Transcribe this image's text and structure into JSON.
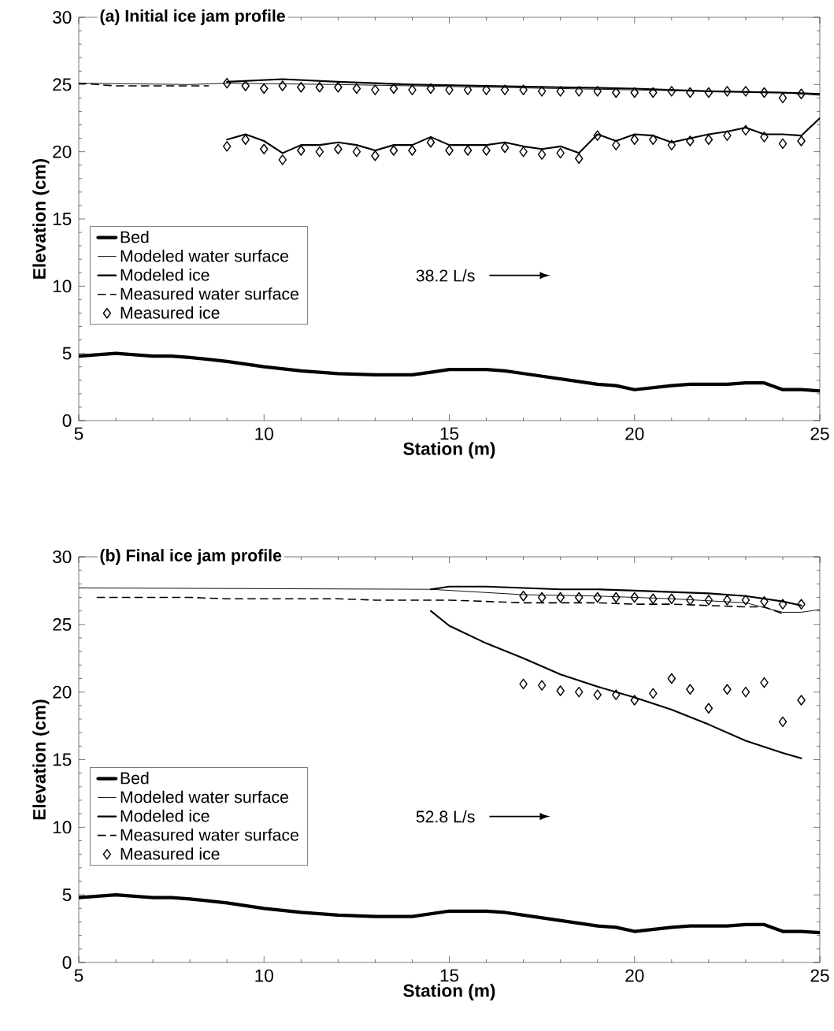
{
  "chart_data": [
    {
      "type": "line",
      "title": "(a) Initial ice jam profile",
      "xlabel": "Station (m)",
      "ylabel": "Elevation (cm)",
      "annotations": [
        "38.2 L/s"
      ],
      "legend": "left",
      "xlim": [
        5,
        25
      ],
      "ylim": [
        0,
        30
      ],
      "xticks": [
        5,
        10,
        15,
        20,
        25
      ],
      "yticks": [
        0,
        5,
        10,
        15,
        20,
        25,
        30
      ],
      "series": [
        {
          "name": "Bed",
          "color": "#000000",
          "x": [
            5,
            6,
            7,
            7.5,
            8,
            9,
            10,
            11,
            12,
            13,
            14,
            14.5,
            15,
            16,
            16.5,
            17,
            18,
            19,
            19.5,
            20,
            21,
            21.5,
            22,
            22.5,
            23,
            23.5,
            24,
            24.5,
            25
          ],
          "values": [
            4.8,
            5.0,
            4.8,
            4.8,
            4.7,
            4.4,
            4.0,
            3.7,
            3.5,
            3.4,
            3.4,
            3.6,
            3.8,
            3.8,
            3.7,
            3.5,
            3.1,
            2.7,
            2.6,
            2.3,
            2.6,
            2.7,
            2.7,
            2.7,
            2.8,
            2.8,
            2.3,
            2.3,
            2.2
          ]
        },
        {
          "name": "Modeled water surface",
          "color": "#000000",
          "x": [
            5,
            8,
            9,
            12,
            16,
            20,
            24,
            25
          ],
          "values": [
            25.1,
            25.0,
            25.1,
            25.0,
            24.8,
            24.6,
            24.4,
            24.2
          ]
        },
        {
          "name": "Modeled ice",
          "color": "#000000",
          "x": [
            9,
            10.5,
            12,
            14,
            16,
            18,
            20,
            22,
            24,
            25,
            null,
            9,
            9.5,
            10,
            10.5,
            11,
            11.5,
            12,
            12.5,
            13,
            13.5,
            14,
            14.5,
            15,
            15.5,
            16,
            16.5,
            17,
            17.5,
            18,
            18.5,
            19,
            19.5,
            20,
            20.5,
            21,
            21.5,
            22,
            22.5,
            23,
            23.5,
            24,
            24.5,
            25
          ],
          "values": [
            25.2,
            25.4,
            25.2,
            25.0,
            24.9,
            24.8,
            24.7,
            24.5,
            24.4,
            24.3,
            null,
            20.9,
            21.3,
            20.8,
            19.9,
            20.5,
            20.5,
            20.7,
            20.5,
            20.1,
            20.5,
            20.5,
            21.1,
            20.5,
            20.5,
            20.5,
            20.7,
            20.4,
            20.2,
            20.4,
            19.9,
            21.3,
            20.8,
            21.3,
            21.2,
            20.7,
            21.0,
            21.3,
            21.5,
            21.8,
            21.3,
            21.3,
            21.2,
            22.5
          ]
        },
        {
          "name": "Measured water surface",
          "type": "line",
          "line_style": "dashed",
          "color": "#000000",
          "x": [
            5,
            5.5,
            6,
            6.5,
            7,
            7.5,
            8,
            8.5
          ],
          "values": [
            25.1,
            25.0,
            24.9,
            24.9,
            24.9,
            24.9,
            24.9,
            24.9
          ]
        },
        {
          "name": "Measured ice",
          "type": "scatter",
          "marker": "diamond",
          "color": "#000000",
          "x": [
            9,
            9.5,
            10,
            10.5,
            11,
            11.5,
            12,
            12.5,
            13,
            13.5,
            14,
            14.5,
            15,
            15.5,
            16,
            16.5,
            17,
            17.5,
            18,
            18.5,
            19,
            19.5,
            20,
            20.5,
            21,
            21.5,
            22,
            22.5,
            23,
            23.5,
            24,
            24.5,
            9,
            9.5,
            10,
            10.5,
            11,
            11.5,
            12,
            12.5,
            13,
            13.5,
            14,
            14.5,
            15,
            15.5,
            16,
            16.5,
            17,
            17.5,
            18,
            18.5,
            19,
            19.5,
            20,
            20.5,
            21,
            21.5,
            22,
            22.5,
            23,
            23.5,
            24,
            24.5
          ],
          "values": [
            25.1,
            24.9,
            24.7,
            24.9,
            24.8,
            24.8,
            24.8,
            24.7,
            24.6,
            24.7,
            24.6,
            24.7,
            24.6,
            24.6,
            24.6,
            24.6,
            24.6,
            24.5,
            24.5,
            24.5,
            24.5,
            24.4,
            24.4,
            24.4,
            24.5,
            24.4,
            24.4,
            24.5,
            24.5,
            24.4,
            24.0,
            24.3,
            20.4,
            20.9,
            20.2,
            19.4,
            20.1,
            20.0,
            20.2,
            20.0,
            19.7,
            20.1,
            20.1,
            20.7,
            20.1,
            20.1,
            20.1,
            20.3,
            20.0,
            19.8,
            19.9,
            19.5,
            21.2,
            20.5,
            20.9,
            20.9,
            20.5,
            20.8,
            20.9,
            21.2,
            21.6,
            21.1,
            20.6,
            20.8
          ]
        }
      ]
    },
    {
      "type": "line",
      "title": "(b) Final ice jam profile",
      "xlabel": "Station (m)",
      "ylabel": "Elevation (cm)",
      "annotations": [
        "52.8 L/s"
      ],
      "legend": "left",
      "xlim": [
        5,
        25
      ],
      "ylim": [
        0,
        30
      ],
      "xticks": [
        5,
        10,
        15,
        20,
        25
      ],
      "yticks": [
        0,
        5,
        10,
        15,
        20,
        25,
        30
      ],
      "series": [
        {
          "name": "Bed",
          "color": "#000000",
          "x": [
            5,
            6,
            7,
            7.5,
            8,
            9,
            10,
            11,
            12,
            13,
            14,
            14.5,
            15,
            16,
            16.5,
            17,
            18,
            19,
            19.5,
            20,
            21,
            21.5,
            22,
            22.5,
            23,
            23.5,
            24,
            24.5,
            25
          ],
          "values": [
            4.8,
            5.0,
            4.8,
            4.8,
            4.7,
            4.4,
            4.0,
            3.7,
            3.5,
            3.4,
            3.4,
            3.6,
            3.8,
            3.8,
            3.7,
            3.5,
            3.1,
            2.7,
            2.6,
            2.3,
            2.6,
            2.7,
            2.7,
            2.7,
            2.8,
            2.8,
            2.3,
            2.3,
            2.2
          ]
        },
        {
          "name": "Modeled water surface",
          "color": "#000000",
          "x": [
            5,
            14.5,
            17,
            19,
            21,
            23,
            24,
            24.5,
            25
          ],
          "values": [
            27.7,
            27.6,
            27.2,
            27.1,
            26.9,
            26.6,
            25.9,
            25.9,
            26.1
          ]
        },
        {
          "name": "Modeled ice",
          "color": "#000000",
          "x": [
            14.5,
            15,
            16,
            17,
            18,
            19,
            20,
            21,
            22,
            23,
            24,
            24.5,
            null,
            14.5,
            15,
            16,
            17,
            18,
            19,
            20,
            21,
            22,
            23,
            24,
            24.5
          ],
          "values": [
            27.6,
            27.8,
            27.8,
            27.7,
            27.6,
            27.6,
            27.5,
            27.4,
            27.3,
            27.1,
            26.7,
            26.4,
            null,
            26.0,
            24.9,
            23.6,
            22.5,
            21.3,
            20.4,
            19.6,
            18.7,
            17.6,
            16.4,
            15.5,
            15.1
          ]
        },
        {
          "name": "Measured water surface",
          "type": "line",
          "line_style": "dashed",
          "color": "#000000",
          "x": [
            5.5,
            6,
            7,
            8,
            9,
            10,
            11,
            12,
            13,
            14,
            15,
            16,
            17,
            18,
            19,
            20,
            21,
            22,
            23,
            23.5,
            24
          ],
          "values": [
            27.0,
            27.0,
            27.0,
            27.0,
            26.9,
            26.9,
            26.9,
            26.9,
            26.8,
            26.8,
            26.8,
            26.7,
            26.6,
            26.6,
            26.6,
            26.5,
            26.5,
            26.4,
            26.3,
            26.3,
            25.8
          ]
        },
        {
          "name": "Measured ice",
          "type": "scatter",
          "marker": "diamond",
          "color": "#000000",
          "x": [
            17,
            17.5,
            18,
            18.5,
            19,
            19.5,
            20,
            20.5,
            21,
            21.5,
            22,
            22.5,
            23,
            23.5,
            24,
            24.5,
            17,
            17.5,
            18,
            18.5,
            19,
            19.5,
            20,
            20.5,
            21,
            21.5,
            22,
            22.5,
            23,
            23.5,
            24,
            24.5
          ],
          "values": [
            27.1,
            27.0,
            27.0,
            27.0,
            27.0,
            27.0,
            27.0,
            26.9,
            26.9,
            26.8,
            26.8,
            26.8,
            26.8,
            26.7,
            26.5,
            26.5,
            20.6,
            20.5,
            20.1,
            20.0,
            19.8,
            19.8,
            19.4,
            19.9,
            21.0,
            20.2,
            18.8,
            20.2,
            20.0,
            20.7,
            17.8,
            19.4
          ]
        }
      ]
    }
  ]
}
